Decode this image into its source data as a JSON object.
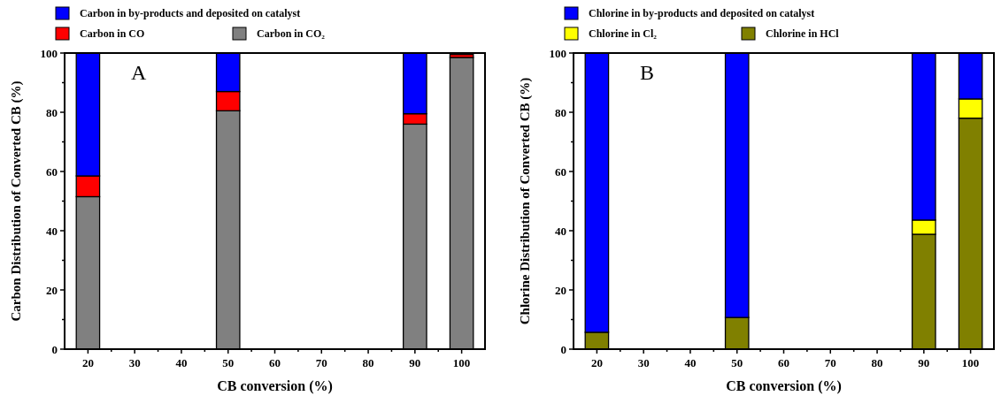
{
  "chart_data": [
    {
      "type": "bar",
      "stacked": true,
      "xlabel": "CB conversion (%)",
      "ylabel": "Carbon Distribution of Converted CB (%)",
      "annotations": [
        "A"
      ],
      "x": [
        20,
        50,
        90,
        100
      ],
      "xlim": [
        15,
        105
      ],
      "ylim": [
        0,
        100
      ],
      "xticks": [
        20,
        {
          "value": 25,
          "label": null
        },
        30,
        {
          "value": 35,
          "label": null
        },
        40,
        {
          "value": 45,
          "label": null
        },
        50,
        {
          "value": 55,
          "label": null
        },
        60,
        {
          "value": 65,
          "label": null
        },
        70,
        {
          "value": 75,
          "label": null
        },
        80,
        {
          "value": 85,
          "label": null
        },
        90,
        {
          "value": 95,
          "label": null
        },
        100
      ],
      "yticks": [
        0,
        {
          "value": 10,
          "label": null
        },
        20,
        {
          "value": 30,
          "label": null
        },
        40,
        {
          "value": 50,
          "label": null
        },
        60,
        {
          "value": 70,
          "label": null
        },
        80,
        {
          "value": 90,
          "label": null
        },
        100
      ],
      "legend": "top",
      "grid": false,
      "series": [
        {
          "name": "Carbon in CO₂",
          "color": "#808080",
          "values": [
            51.5,
            80.5,
            76,
            98.5
          ]
        },
        {
          "name": "Carbon in CO",
          "color": "#ff0000",
          "values": [
            7,
            6.5,
            3.5,
            1
          ]
        },
        {
          "name": "Carbon in by-products and deposited on catalyst",
          "color": "#0000ff",
          "values": [
            41.5,
            13,
            20.5,
            null
          ]
        }
      ]
    },
    {
      "type": "bar",
      "stacked": true,
      "xlabel": "CB conversion (%)",
      "ylabel": "Chlorine Distribution of Converted CB (%)",
      "annotations": [
        "B"
      ],
      "x": [
        20,
        50,
        90,
        100
      ],
      "xlim": [
        15,
        105
      ],
      "ylim": [
        0,
        100
      ],
      "xticks": [
        20,
        {
          "value": 25,
          "label": null
        },
        30,
        {
          "value": 35,
          "label": null
        },
        40,
        {
          "value": 45,
          "label": null
        },
        50,
        {
          "value": 55,
          "label": null
        },
        60,
        {
          "value": 65,
          "label": null
        },
        70,
        {
          "value": 75,
          "label": null
        },
        80,
        {
          "value": 85,
          "label": null
        },
        90,
        {
          "value": 95,
          "label": null
        },
        100
      ],
      "yticks": [
        0,
        {
          "value": 10,
          "label": null
        },
        20,
        {
          "value": 30,
          "label": null
        },
        40,
        {
          "value": 50,
          "label": null
        },
        60,
        {
          "value": 70,
          "label": null
        },
        80,
        {
          "value": 90,
          "label": null
        },
        100
      ],
      "legend": "top",
      "grid": false,
      "series": [
        {
          "name": "Chlorine in HCl",
          "color": "#808000",
          "values": [
            5.7,
            10.7,
            38.8,
            78
          ]
        },
        {
          "name": "Chlorine in Cl₂",
          "color": "#ffff00",
          "values": [
            0,
            0,
            4.8,
            6.5
          ]
        },
        {
          "name": "Chlorine in by-products and deposited on catalyst",
          "color": "#0000ff",
          "values": [
            94.3,
            89.3,
            56.4,
            15.5
          ]
        }
      ]
    }
  ]
}
